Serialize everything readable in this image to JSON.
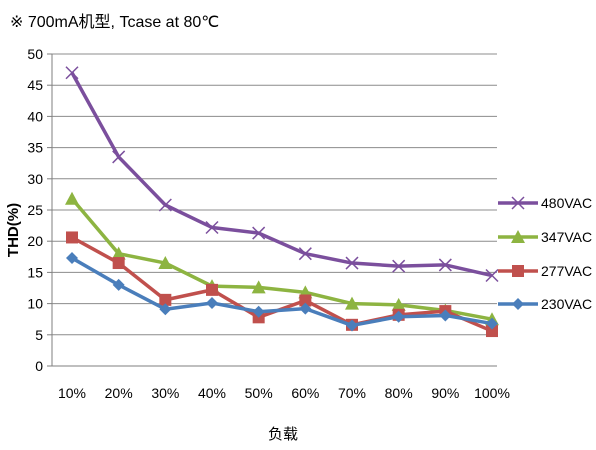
{
  "chart_data": {
    "type": "line",
    "title": "※ 700mA机型, Tcase at 80℃",
    "xlabel": "负载",
    "ylabel": "THD(%)",
    "categories": [
      "10%",
      "20%",
      "30%",
      "40%",
      "50%",
      "60%",
      "70%",
      "80%",
      "90%",
      "100%"
    ],
    "ylim": [
      0,
      50
    ],
    "yticks": [
      0,
      5,
      10,
      15,
      20,
      25,
      30,
      35,
      40,
      45,
      50
    ],
    "grid": true,
    "legend_position": "right",
    "series": [
      {
        "name": "480VAC",
        "color": "#7b4f9d",
        "marker": "x",
        "values": [
          47.0,
          33.5,
          25.8,
          22.2,
          21.3,
          18.0,
          16.5,
          16.0,
          16.2,
          14.5
        ]
      },
      {
        "name": "347VAC",
        "color": "#8db441",
        "marker": "triangle",
        "values": [
          26.8,
          18.0,
          16.5,
          12.8,
          12.6,
          11.8,
          10.0,
          9.8,
          8.9,
          7.5
        ]
      },
      {
        "name": "277VAC",
        "color": "#c0504d",
        "marker": "square",
        "values": [
          20.6,
          16.5,
          10.6,
          12.2,
          7.8,
          10.5,
          6.6,
          8.2,
          8.8,
          5.6
        ]
      },
      {
        "name": "230VAC",
        "color": "#4a7ebb",
        "marker": "diamond",
        "values": [
          17.3,
          13.0,
          9.1,
          10.1,
          8.7,
          9.2,
          6.5,
          7.9,
          8.1,
          6.8
        ]
      }
    ]
  }
}
